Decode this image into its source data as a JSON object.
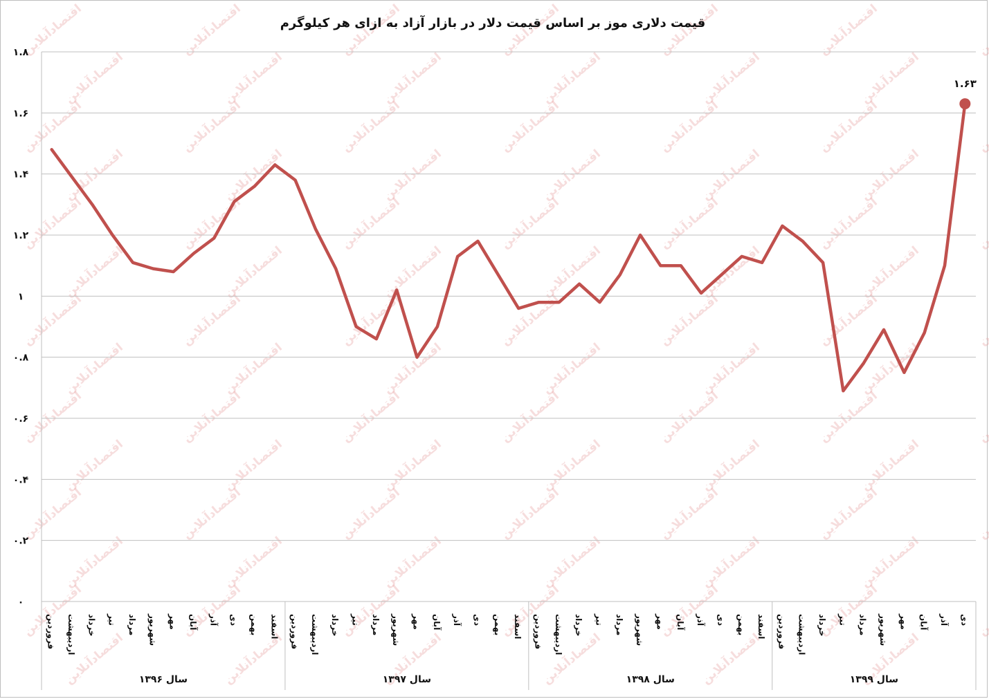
{
  "chart_data": {
    "type": "line",
    "title": "قیمت دلاری موز بر اساس قیمت دلار در بازار آزاد به ازای هر کیلوگرم",
    "ylim": [
      0,
      1.8
    ],
    "yticks": [
      "۰",
      "۰.۲",
      "۰.۴",
      "۰.۶",
      "۰.۸",
      "۱",
      "۱.۲",
      "۱.۴",
      "۱.۶",
      "۱.۸"
    ],
    "ytick_values": [
      0,
      0.2,
      0.4,
      0.6,
      0.8,
      1,
      1.2,
      1.4,
      1.6,
      1.8
    ],
    "grid": true,
    "legend": "none",
    "line_color": "#c0504d",
    "groups": [
      {
        "label": "سال ۱۳۹۶",
        "months": [
          "فروردین",
          "اردیبهشت",
          "خرداد",
          "تیر",
          "مرداد",
          "شهریور",
          "مهر",
          "آبان",
          "آذر",
          "دی",
          "بهمن",
          "اسفند"
        ],
        "values": [
          1.48,
          1.39,
          1.3,
          1.2,
          1.11,
          1.09,
          1.08,
          1.14,
          1.19,
          1.31,
          1.36,
          1.43
        ]
      },
      {
        "label": "سال ۱۳۹۷",
        "months": [
          "فروردین",
          "اردیبهشت",
          "خرداد",
          "تیر",
          "مرداد",
          "شهریور",
          "مهر",
          "آبان",
          "آذر",
          "دی",
          "بهمن",
          "اسفند"
        ],
        "values": [
          1.38,
          1.22,
          1.09,
          0.9,
          0.86,
          1.02,
          0.8,
          0.9,
          1.13,
          1.18,
          1.07,
          0.96
        ]
      },
      {
        "label": "سال ۱۳۹۸",
        "months": [
          "فروردین",
          "اردیبهشت",
          "خرداد",
          "تیر",
          "مرداد",
          "شهریور",
          "مهر",
          "آبان",
          "آذر",
          "دی",
          "بهمن",
          "اسفند"
        ],
        "values": [
          0.98,
          0.98,
          1.04,
          0.98,
          1.07,
          1.2,
          1.1,
          1.1,
          1.01,
          1.07,
          1.13,
          1.11
        ]
      },
      {
        "label": "سال ۱۳۹۹",
        "months": [
          "فروردین",
          "اردیبهشت",
          "خرداد",
          "تیر",
          "مرداد",
          "شهریور",
          "مهر",
          "آبان",
          "آذر",
          "دی"
        ],
        "values": [
          1.23,
          1.18,
          1.11,
          0.69,
          0.78,
          0.89,
          0.75,
          0.88,
          1.1,
          1.63
        ]
      }
    ],
    "data_labels": [
      {
        "group": 3,
        "index": 9,
        "text": "۱.۶۳"
      }
    ]
  },
  "watermark": "اقتصادآنلاین"
}
